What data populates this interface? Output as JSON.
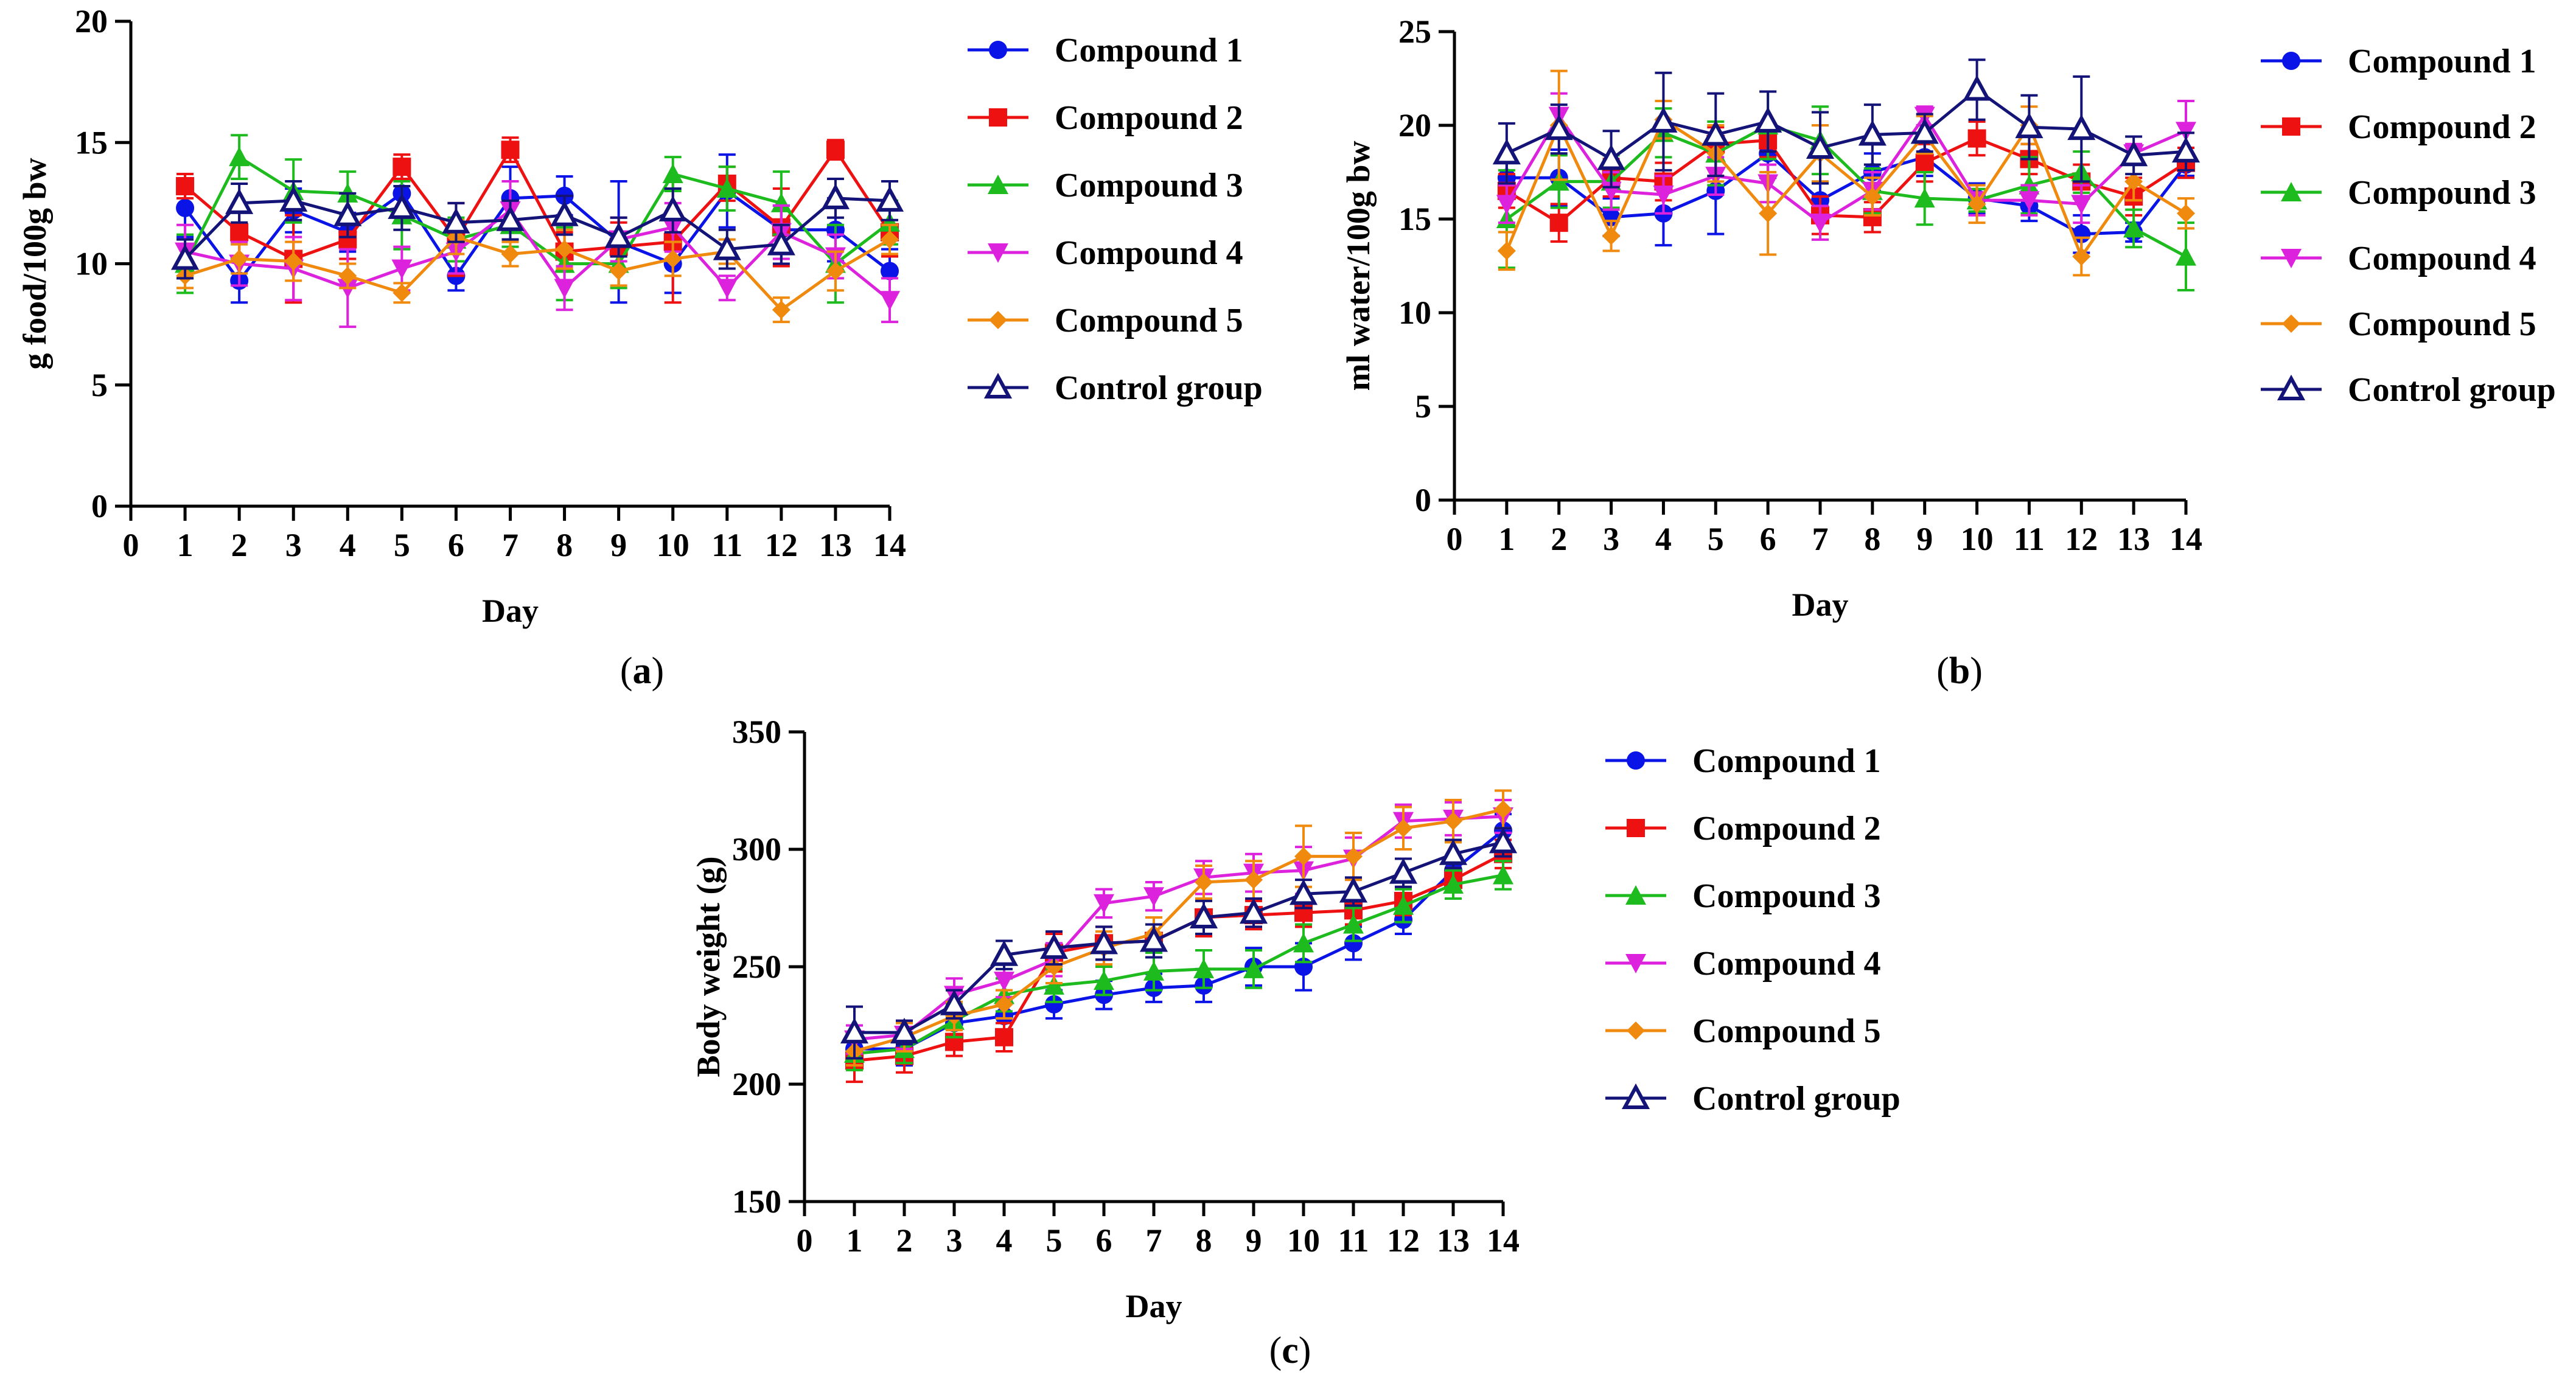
{
  "chart_data": [
    {
      "type": "line",
      "panel_label": "a",
      "title": "",
      "xlabel": "Day",
      "ylabel": "g food/100g bw",
      "xlim": [
        0,
        14
      ],
      "ylim": [
        0,
        20
      ],
      "x_ticks": [
        0,
        1,
        2,
        3,
        4,
        5,
        6,
        7,
        8,
        9,
        10,
        11,
        12,
        13,
        14
      ],
      "y_ticks": [
        0,
        5,
        10,
        15,
        20
      ],
      "x": [
        1,
        2,
        3,
        4,
        5,
        6,
        7,
        8,
        9,
        10,
        11,
        12,
        13,
        14
      ],
      "legend_position": "right",
      "series": [
        {
          "name": "Compound 1",
          "color": "#0a14e6",
          "marker": "circle",
          "values": [
            12.3,
            9.3,
            12.2,
            11.3,
            12.9,
            9.5,
            12.7,
            12.8,
            10.9,
            10.0,
            13.0,
            11.4,
            11.4,
            9.7
          ],
          "errors": [
            1.2,
            0.9,
            0.9,
            0.8,
            1.0,
            0.6,
            1.3,
            0.8,
            2.5,
            1.2,
            1.5,
            1.0,
            1.3,
            0.9
          ]
        },
        {
          "name": "Compound 2",
          "color": "#ee1111",
          "marker": "square",
          "values": [
            13.2,
            11.3,
            10.2,
            11.0,
            14.0,
            11.0,
            14.7,
            10.5,
            10.7,
            10.9,
            13.3,
            11.5,
            14.7,
            11.3
          ],
          "errors": [
            0.5,
            1.0,
            1.8,
            0.8,
            0.5,
            1.5,
            0.5,
            0.8,
            1.0,
            2.5,
            0.7,
            1.6,
            0.4,
            1.0
          ]
        },
        {
          "name": "Compound 3",
          "color": "#1dbb1d",
          "marker": "triangle-up",
          "values": [
            10.0,
            14.4,
            13.0,
            12.9,
            12.0,
            11.0,
            11.6,
            10.0,
            10.0,
            13.7,
            13.1,
            12.5,
            10.0,
            11.7
          ],
          "errors": [
            1.2,
            0.9,
            1.3,
            0.9,
            1.4,
            0.9,
            0.9,
            1.5,
            1.0,
            0.7,
            0.9,
            1.3,
            1.6,
            0.9
          ]
        },
        {
          "name": "Compound 4",
          "color": "#dd22dd",
          "marker": "triangle-down",
          "values": [
            10.5,
            10.0,
            9.8,
            9.0,
            9.8,
            10.5,
            12.2,
            9.0,
            11.0,
            11.5,
            9.0,
            11.3,
            10.3,
            8.5
          ],
          "errors": [
            1.1,
            0.9,
            1.3,
            1.6,
            0.9,
            0.9,
            1.2,
            0.9,
            0.9,
            1.0,
            0.5,
            1.1,
            0.9,
            0.9
          ]
        },
        {
          "name": "Compound 5",
          "color": "#f08a0e",
          "marker": "diamond",
          "values": [
            9.5,
            10.2,
            10.1,
            9.5,
            8.8,
            11.1,
            10.4,
            10.6,
            9.7,
            10.2,
            10.5,
            8.1,
            9.7,
            11.0
          ],
          "errors": [
            0.5,
            0.6,
            0.8,
            0.5,
            0.4,
            0.7,
            0.5,
            0.8,
            0.6,
            0.7,
            0.5,
            0.5,
            0.8,
            0.6
          ]
        },
        {
          "name": "Control group",
          "color": "#141478",
          "marker": "triangle-open",
          "values": [
            10.2,
            12.5,
            12.6,
            12.0,
            12.3,
            11.7,
            11.8,
            12.0,
            11.1,
            12.2,
            10.6,
            10.8,
            12.7,
            12.6
          ],
          "errors": [
            0.8,
            0.8,
            0.8,
            0.9,
            0.9,
            0.8,
            0.8,
            0.8,
            0.8,
            0.9,
            0.8,
            0.8,
            0.8,
            0.8
          ]
        }
      ]
    },
    {
      "type": "line",
      "panel_label": "b",
      "title": "",
      "xlabel": "Day",
      "ylabel": "ml water/100g bw",
      "xlim": [
        0,
        14
      ],
      "ylim": [
        0,
        25
      ],
      "x_ticks": [
        0,
        1,
        2,
        3,
        4,
        5,
        6,
        7,
        8,
        9,
        10,
        11,
        12,
        13,
        14
      ],
      "y_ticks": [
        0,
        5,
        10,
        15,
        20,
        25
      ],
      "x": [
        1,
        2,
        3,
        4,
        5,
        6,
        7,
        8,
        9,
        10,
        11,
        12,
        13,
        14
      ],
      "legend_position": "right",
      "series": [
        {
          "name": "Compound 1",
          "color": "#0a14e6",
          "marker": "circle",
          "values": [
            17.2,
            17.2,
            15.1,
            15.3,
            16.5,
            18.5,
            16.0,
            17.5,
            18.3,
            16.1,
            15.7,
            14.2,
            14.3,
            17.9
          ],
          "errors": [
            1.0,
            1.5,
            1.0,
            1.7,
            2.3,
            1.3,
            1.0,
            1.0,
            1.0,
            0.8,
            0.8,
            1.0,
            0.5,
            0.6
          ]
        },
        {
          "name": "Compound 2",
          "color": "#ee1111",
          "marker": "square",
          "values": [
            16.5,
            14.8,
            17.2,
            17.0,
            19.0,
            19.2,
            15.2,
            15.1,
            18.0,
            19.3,
            18.2,
            17.0,
            16.2,
            18.0
          ],
          "errors": [
            0.9,
            1.0,
            1.0,
            1.0,
            0.9,
            0.9,
            1.0,
            0.8,
            1.0,
            0.9,
            0.8,
            0.9,
            1.0,
            0.8
          ]
        },
        {
          "name": "Compound 3",
          "color": "#1dbb1d",
          "marker": "triangle-up",
          "values": [
            15.0,
            17.0,
            17.0,
            19.6,
            18.5,
            20.0,
            19.2,
            16.5,
            16.1,
            16.0,
            16.8,
            17.5,
            14.5,
            13.0
          ],
          "errors": [
            2.6,
            1.4,
            1.4,
            1.3,
            1.7,
            1.8,
            1.8,
            1.2,
            1.4,
            0.6,
            1.5,
            1.1,
            1.0,
            1.8
          ]
        },
        {
          "name": "Compound 4",
          "color": "#dd22dd",
          "marker": "triangle-down",
          "values": [
            15.8,
            20.5,
            16.5,
            16.3,
            17.3,
            16.9,
            14.8,
            16.5,
            20.5,
            16.0,
            16.0,
            15.8,
            18.5,
            19.7
          ],
          "errors": [
            1.0,
            1.2,
            1.0,
            1.0,
            1.0,
            1.0,
            0.9,
            1.0,
            0.5,
            0.8,
            0.8,
            1.0,
            0.5,
            1.6
          ]
        },
        {
          "name": "Compound 5",
          "color": "#f08a0e",
          "marker": "diamond",
          "values": [
            13.3,
            20.0,
            14.1,
            20.3,
            18.5,
            15.3,
            18.5,
            16.2,
            19.5,
            15.8,
            20.0,
            13.0,
            17.0,
            15.3
          ],
          "errors": [
            1.0,
            2.9,
            0.8,
            1.0,
            1.5,
            2.2,
            1.5,
            1.0,
            1.0,
            1.0,
            1.0,
            1.0,
            1.0,
            0.8
          ]
        },
        {
          "name": "Control group",
          "color": "#141478",
          "marker": "triangle-open",
          "values": [
            18.5,
            19.8,
            18.2,
            20.2,
            19.5,
            20.2,
            18.8,
            19.5,
            19.6,
            21.9,
            19.9,
            19.8,
            18.4,
            18.6
          ],
          "errors": [
            1.6,
            1.3,
            1.5,
            2.6,
            2.2,
            1.6,
            1.9,
            1.6,
            1.0,
            1.6,
            1.7,
            2.8,
            1.0,
            1.0
          ]
        }
      ]
    },
    {
      "type": "line",
      "panel_label": "c",
      "title": "",
      "xlabel": "Day",
      "ylabel": "Body weight (g)",
      "xlim": [
        0,
        14
      ],
      "ylim": [
        150,
        350
      ],
      "x_ticks": [
        0,
        1,
        2,
        3,
        4,
        5,
        6,
        7,
        8,
        9,
        10,
        11,
        12,
        13,
        14
      ],
      "y_ticks": [
        150,
        200,
        250,
        300,
        350
      ],
      "x": [
        1,
        2,
        3,
        4,
        5,
        6,
        7,
        8,
        9,
        10,
        11,
        12,
        13,
        14
      ],
      "legend_position": "right",
      "series": [
        {
          "name": "Compound 1",
          "color": "#0a14e6",
          "marker": "circle",
          "values": [
            215,
            215,
            226,
            229,
            234,
            238,
            241,
            242,
            250,
            250,
            260,
            270,
            291,
            308
          ],
          "errors": [
            7,
            7,
            7,
            7,
            6,
            6,
            6,
            7,
            8,
            10,
            7,
            6,
            6,
            7
          ]
        },
        {
          "name": "Compound 2",
          "color": "#ee1111",
          "marker": "square",
          "values": [
            210,
            212,
            218,
            220,
            256,
            260,
            261,
            271,
            272,
            273,
            274,
            278,
            287,
            298
          ],
          "errors": [
            9,
            7,
            6,
            6,
            8,
            7,
            7,
            8,
            6,
            6,
            6,
            6,
            5,
            6
          ]
        },
        {
          "name": "Compound 3",
          "color": "#1dbb1d",
          "marker": "triangle-up",
          "values": [
            213,
            215,
            227,
            238,
            242,
            244,
            248,
            249,
            249,
            260,
            268,
            276,
            285,
            289
          ],
          "errors": [
            7,
            6,
            7,
            7,
            7,
            6,
            8,
            8,
            8,
            8,
            7,
            7,
            6,
            6
          ]
        },
        {
          "name": "Compound 4",
          "color": "#dd22dd",
          "marker": "triangle-down",
          "values": [
            219,
            221,
            238,
            244,
            253,
            277,
            280,
            288,
            290,
            291,
            296,
            312,
            313,
            314
          ],
          "errors": [
            6,
            6,
            7,
            7,
            7,
            6,
            6,
            7,
            8,
            10,
            9,
            7,
            7,
            7
          ]
        },
        {
          "name": "Compound 5",
          "color": "#f08a0e",
          "marker": "diamond",
          "values": [
            214,
            220,
            229,
            234,
            250,
            258,
            264,
            286,
            287,
            297,
            297,
            309,
            312,
            317
          ],
          "errors": [
            6,
            6,
            6,
            6,
            7,
            7,
            7,
            7,
            8,
            13,
            10,
            9,
            9,
            8
          ]
        },
        {
          "name": "Control group",
          "color": "#141478",
          "marker": "triangle-open",
          "values": [
            222,
            222,
            234,
            255,
            258,
            260,
            261,
            271,
            273,
            281,
            282,
            290,
            298,
            303
          ],
          "errors": [
            11,
            5,
            6,
            6,
            7,
            7,
            7,
            7,
            6,
            6,
            6,
            6,
            6,
            6
          ]
        }
      ]
    }
  ]
}
